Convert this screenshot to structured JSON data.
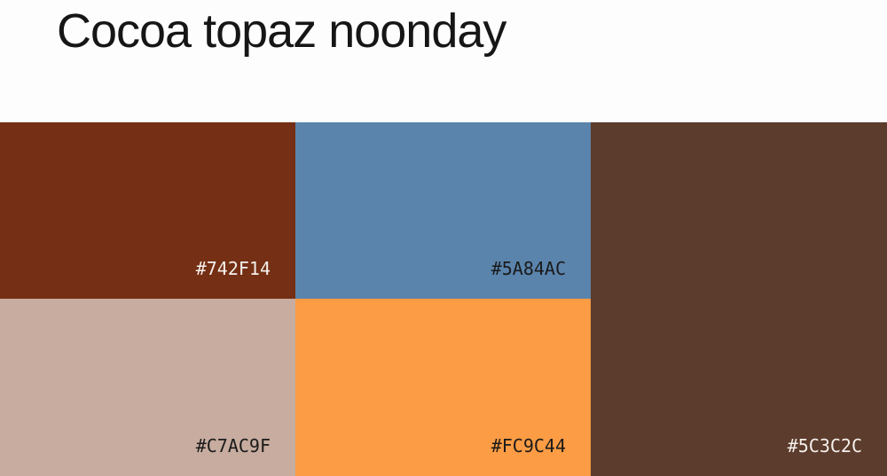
{
  "title": "Cocoa topaz noonday",
  "swatches": [
    {
      "hex": "#742F14"
    },
    {
      "hex": "#5A84AC"
    },
    {
      "hex": "#5C3C2C"
    },
    {
      "hex": "#C7AC9F"
    },
    {
      "hex": "#FC9C44"
    }
  ]
}
